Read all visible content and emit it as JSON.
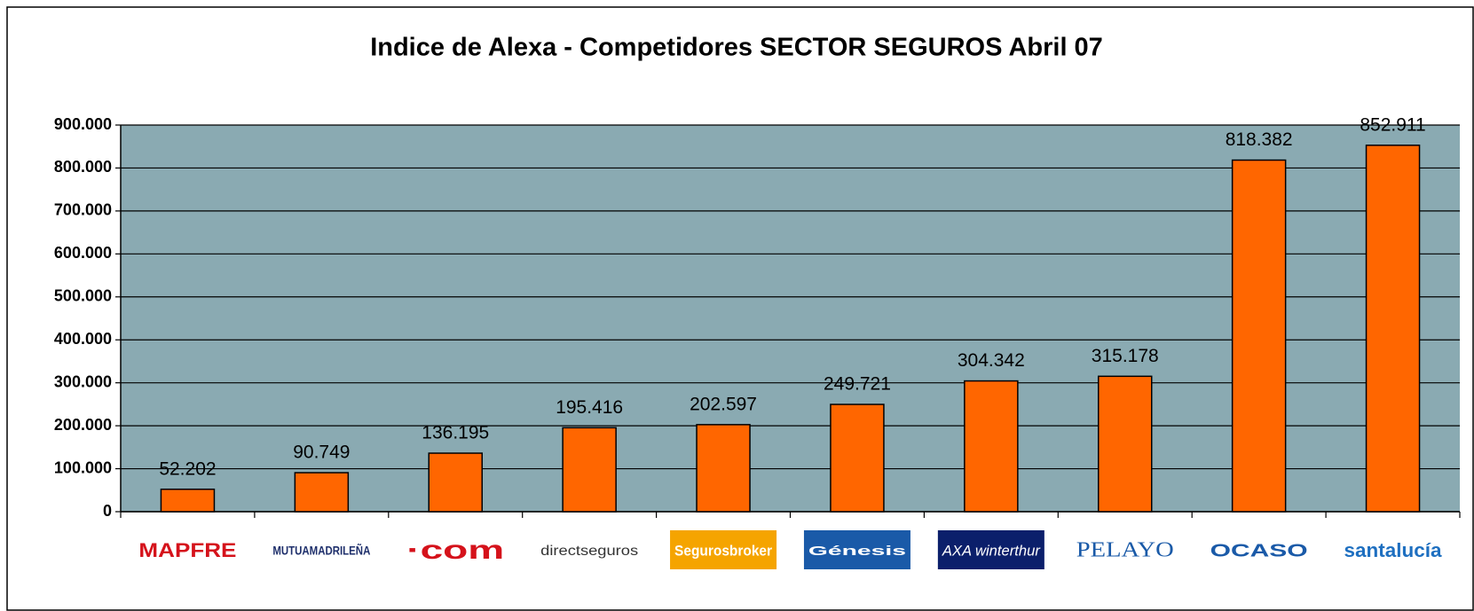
{
  "chart_data": {
    "type": "bar",
    "title": "Indice de Alexa - Competidores SECTOR SEGUROS Abril 07",
    "categories": [
      "MAPFRE",
      "MUTUAMADRILEÑA",
      "·com",
      "directseguros",
      "Segurosbroker",
      "Génesis",
      "AXA winterthur",
      "PELAYO",
      "OCASO",
      "santalucía"
    ],
    "values": [
      52202,
      90749,
      136195,
      195416,
      202597,
      249721,
      304342,
      315178,
      818382,
      852911
    ],
    "value_labels": [
      "52.202",
      "90.749",
      "136.195",
      "195.416",
      "202.597",
      "249.721",
      "304.342",
      "315.178",
      "818.382",
      "852.911"
    ],
    "color": "#ff6600",
    "ylim": [
      0,
      900000
    ],
    "yticks": [
      0,
      {
        "value": 100000,
        "label": "100.000"
      },
      {
        "value": 200000,
        "label": "200.000"
      },
      {
        "value": 300000,
        "label": "300.000"
      },
      {
        "value": 400000,
        "label": "400.000"
      },
      {
        "value": 500000,
        "label": "500.000"
      },
      {
        "value": 600000,
        "label": "600.000"
      },
      {
        "value": 700000,
        "label": "700.000"
      },
      {
        "value": 800000,
        "label": "800.000"
      },
      {
        "value": 900000,
        "label": "900.000"
      }
    ],
    "grid": true
  }
}
